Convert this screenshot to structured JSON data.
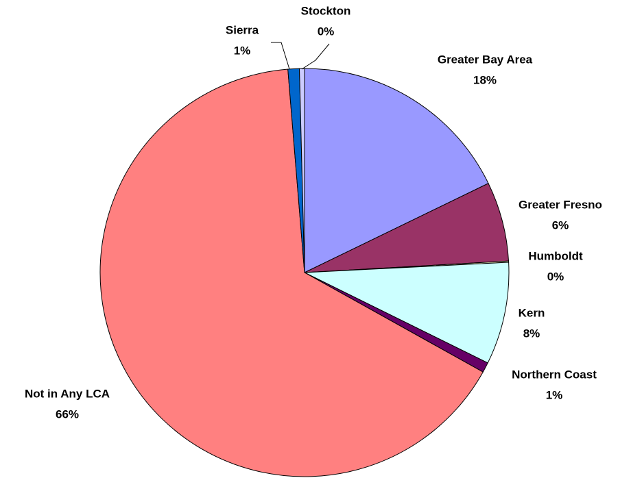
{
  "chart_data": {
    "type": "pie",
    "categories": [
      "Greater Bay Area",
      "Greater Fresno",
      "Humboldt",
      "Kern",
      "Northern Coast",
      "Not in Any LCA",
      "Sierra",
      "Stockton"
    ],
    "values": [
      17.8,
      6.3,
      0.1,
      8.1,
      0.8,
      65.6,
      0.9,
      0.4
    ],
    "value_labels": [
      "18%",
      "6%",
      "0%",
      "8%",
      "1%",
      "66%",
      "1%",
      "0%"
    ],
    "colors": [
      "#9999ff",
      "#993366",
      "#ffffcc",
      "#ccffff",
      "#660066",
      "#ff8080",
      "#0066cc",
      "#ccccff"
    ]
  }
}
